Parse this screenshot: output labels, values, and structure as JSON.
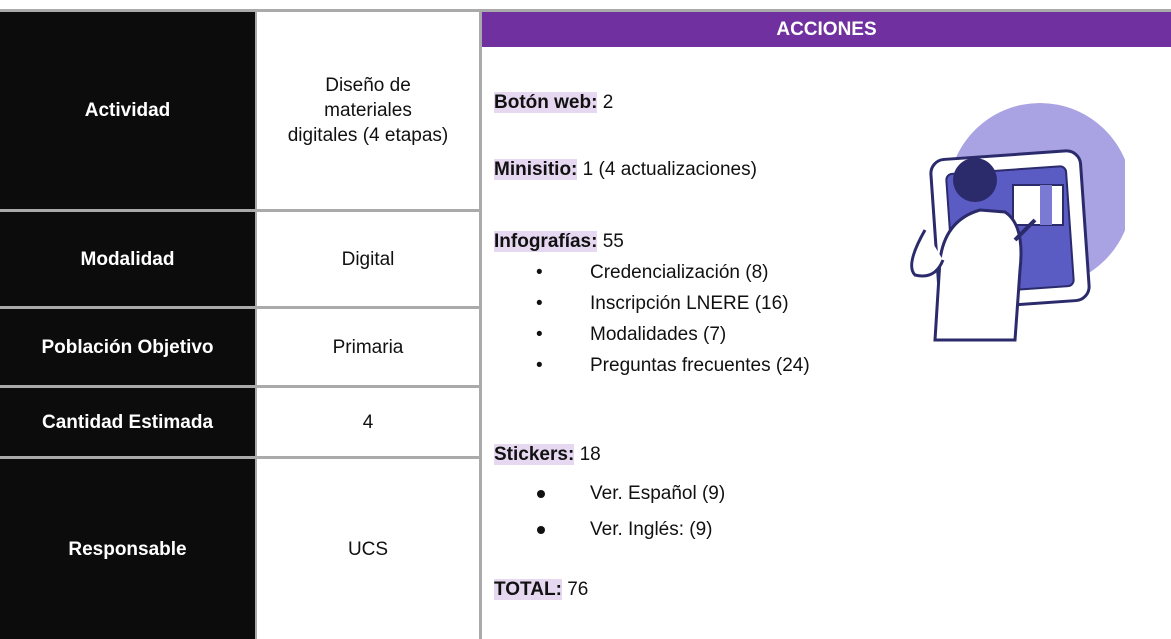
{
  "table": {
    "rows": [
      {
        "label": "Actividad",
        "value": "Diseño de materiales digitales (4 etapas)"
      },
      {
        "label": "Modalidad",
        "value": "Digital"
      },
      {
        "label": "Población Objetivo",
        "value": "Primaria"
      },
      {
        "label": "Cantidad Estimada",
        "value": "4"
      },
      {
        "label": "Responsable",
        "value": "UCS"
      }
    ]
  },
  "actions": {
    "title": "ACCIONES",
    "items": [
      {
        "label": "Botón web:",
        "value": "2"
      },
      {
        "label": "Minisitio:",
        "value": "1 (4 actualizaciones)"
      },
      {
        "label": "Infografías:",
        "value": "55",
        "sub": [
          "Credencialización (8)",
          "Inscripción LNERE (16)",
          "Modalidades (7)",
          "Preguntas frecuentes (24)"
        ]
      },
      {
        "label": "Stickers:",
        "value": "18",
        "sub": [
          "Ver. Español (9)",
          "Ver. Inglés: (9)"
        ]
      },
      {
        "label": "TOTAL:",
        "value": "76"
      }
    ]
  }
}
